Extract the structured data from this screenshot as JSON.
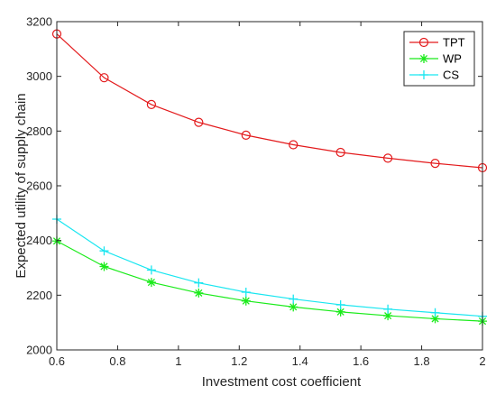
{
  "chart_data": {
    "type": "line",
    "title": "",
    "xlabel": "Investment cost coefficient",
    "ylabel": "Expected utility of supply chain",
    "xlim": [
      0.6,
      2
    ],
    "ylim": [
      2000,
      3200
    ],
    "xticks": [
      0.6,
      0.8,
      1,
      1.2,
      1.4,
      1.6,
      1.8,
      2
    ],
    "xtick_labels": [
      "0.6",
      "0.8",
      "1",
      "1.2",
      "1.4",
      "1.6",
      "1.8",
      "2"
    ],
    "yticks": [
      2000,
      2200,
      2400,
      2600,
      2800,
      3000,
      3200
    ],
    "ytick_labels": [
      "2000",
      "2200",
      "2400",
      "2600",
      "2800",
      "3000",
      "3200"
    ],
    "grid": false,
    "legend_position": "top-right",
    "x": [
      0.6,
      0.7556,
      0.9111,
      1.0667,
      1.2222,
      1.3778,
      1.5333,
      1.6889,
      1.8444,
      2.0
    ],
    "series": [
      {
        "name": "TPT",
        "color": "#e31a1c",
        "marker": "circle",
        "values": [
          3155,
          2995,
          2897,
          2832,
          2785,
          2750,
          2722,
          2701,
          2682,
          2666
        ]
      },
      {
        "name": "WP",
        "color": "#1aeb1a",
        "marker": "asterisk",
        "values": [
          2398,
          2305,
          2247,
          2208,
          2179,
          2157,
          2139,
          2125,
          2114,
          2105
        ]
      },
      {
        "name": "CS",
        "color": "#19e6f0",
        "marker": "plus",
        "values": [
          2478,
          2362,
          2292,
          2245,
          2211,
          2186,
          2165,
          2149,
          2136,
          2123
        ]
      }
    ]
  }
}
